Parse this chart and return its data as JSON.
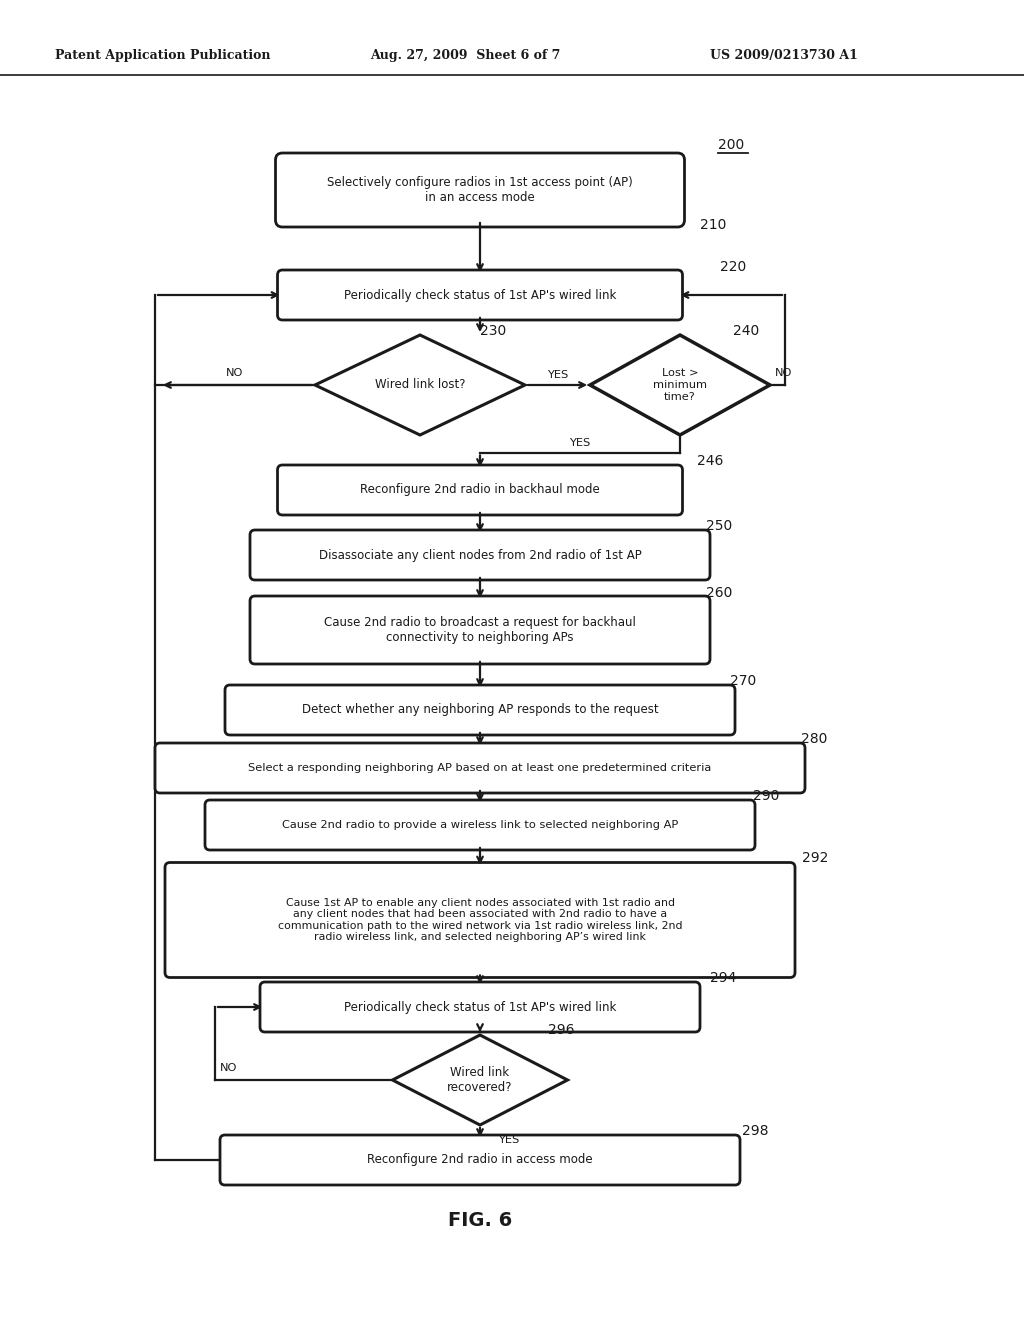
{
  "bg_color": "#ffffff",
  "header_left": "Patent Application Publication",
  "header_mid": "Aug. 27, 2009  Sheet 6 of 7",
  "header_right": "US 2009/0213730 A1",
  "fig_label": "FIG. 6",
  "nodes": {
    "210": {
      "label": "Selectively configure radios in 1st access point (AP)\nin an access mode",
      "ref": "210",
      "ref_extra": "200"
    },
    "220": {
      "label": "Periodically check status of 1st AP's wired link",
      "ref": "220"
    },
    "230": {
      "label": "Wired link lost?",
      "ref": "230"
    },
    "240": {
      "label": "Lost >\nminimum\ntime?",
      "ref": "240"
    },
    "246": {
      "label": "Reconfigure 2nd radio in backhaul mode",
      "ref": "246"
    },
    "250": {
      "label": "Disassociate any client nodes from 2nd radio of 1st AP",
      "ref": "250"
    },
    "260": {
      "label": "Cause 2nd radio to broadcast a request for backhaul\nconnectivity to neighboring APs",
      "ref": "260"
    },
    "270": {
      "label": "Detect whether any neighboring AP responds to the request",
      "ref": "270"
    },
    "280": {
      "label": "Select a responding neighboring AP based on at least one predetermined criteria",
      "ref": "280"
    },
    "290": {
      "label": "Cause 2nd radio to provide a wireless link to selected neighboring AP",
      "ref": "290"
    },
    "292": {
      "label": "Cause 1st AP to enable any client nodes associated with 1st radio and\nany client nodes that had been associated with 2nd radio to have a\ncommunication path to the wired network via 1st radio wireless link, 2nd\nradio wireless link, and selected neighboring AP’s wired link",
      "ref": "292"
    },
    "294": {
      "label": "Periodically check status of 1st AP's wired link",
      "ref": "294"
    },
    "296": {
      "label": "Wired link\nrecovered?",
      "ref": "296"
    },
    "298": {
      "label": "Reconfigure 2nd radio in access mode",
      "ref": "298"
    }
  }
}
